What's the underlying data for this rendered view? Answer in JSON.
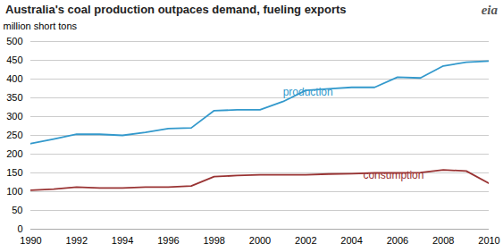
{
  "chart_data": {
    "type": "line",
    "title": "Australia's coal production outpaces demand, fueling exports",
    "ylabel": "million short tons",
    "x": [
      1990,
      1991,
      1992,
      1993,
      1994,
      1995,
      1996,
      1997,
      1998,
      1999,
      2000,
      2001,
      2002,
      2003,
      2004,
      2005,
      2006,
      2007,
      2008,
      2009,
      2010
    ],
    "series": [
      {
        "name": "production",
        "color": "#3399cc",
        "values": [
          228,
          240,
          253,
          253,
          250,
          258,
          268,
          270,
          316,
          318,
          318,
          340,
          370,
          374,
          378,
          378,
          405,
          403,
          435,
          445,
          448
        ]
      },
      {
        "name": "consumption",
        "color": "#993333",
        "values": [
          104,
          107,
          112,
          110,
          110,
          112,
          112,
          115,
          140,
          143,
          145,
          145,
          145,
          147,
          148,
          150,
          150,
          151,
          158,
          155,
          122
        ]
      }
    ],
    "xlim": [
      1990,
      2010
    ],
    "xticks": [
      1990,
      1992,
      1994,
      1996,
      1998,
      2000,
      2002,
      2004,
      2006,
      2008,
      2010
    ],
    "ylim": [
      0,
      500
    ],
    "yticks": [
      0,
      50,
      100,
      150,
      200,
      250,
      300,
      350,
      400,
      450,
      500
    ],
    "grid": true,
    "annotations": [
      {
        "text": "production",
        "x": 2001,
        "y": 355,
        "color": "#3399cc"
      },
      {
        "text": "consumption",
        "x": 2004.5,
        "y": 135,
        "color": "#993333"
      },
      {
        "text": "eia"
      }
    ]
  }
}
